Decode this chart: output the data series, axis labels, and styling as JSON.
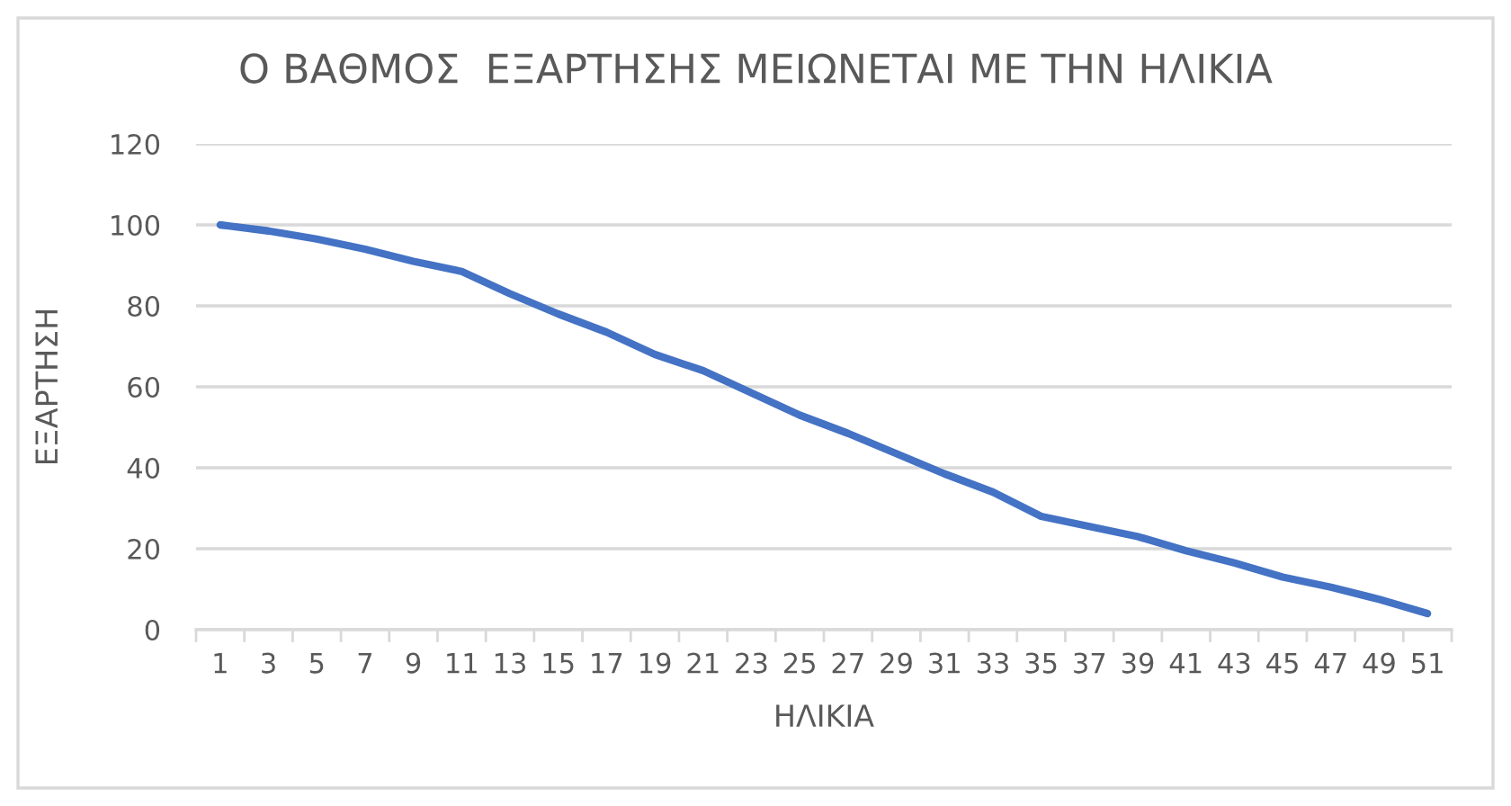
{
  "chart_data": {
    "type": "line",
    "title": "Ο ΒΑΘΜΟΣ  ΕΞΑΡΤΗΣΗΣ ΜΕΙΩΝΕΤΑΙ ΜΕ ΤΗΝ ΗΛΙΚΙΑ",
    "xlabel": "ΗΛΙΚΙΑ",
    "ylabel": "ΕΞΑΡΤΗΣΗ",
    "categories": [
      "1",
      "3",
      "5",
      "7",
      "9",
      "11",
      "13",
      "15",
      "17",
      "19",
      "21",
      "23",
      "25",
      "27",
      "29",
      "31",
      "33",
      "35",
      "37",
      "39",
      "41",
      "43",
      "45",
      "47",
      "49",
      "51"
    ],
    "series": [
      {
        "color": "#4472c4",
        "values": [
          100,
          98.5,
          96.5,
          94,
          91,
          88.5,
          83,
          78,
          73.5,
          68,
          64,
          58.5,
          53,
          48.5,
          43.5,
          38.5,
          34,
          28,
          25.5,
          23,
          19.5,
          16.5,
          13,
          10.5,
          7.5,
          4
        ]
      }
    ],
    "ylim": [
      0,
      120
    ],
    "yticks": [
      0,
      20,
      40,
      60,
      80,
      100,
      120
    ],
    "grid": "y",
    "marker": "none",
    "line_style": "solid"
  }
}
